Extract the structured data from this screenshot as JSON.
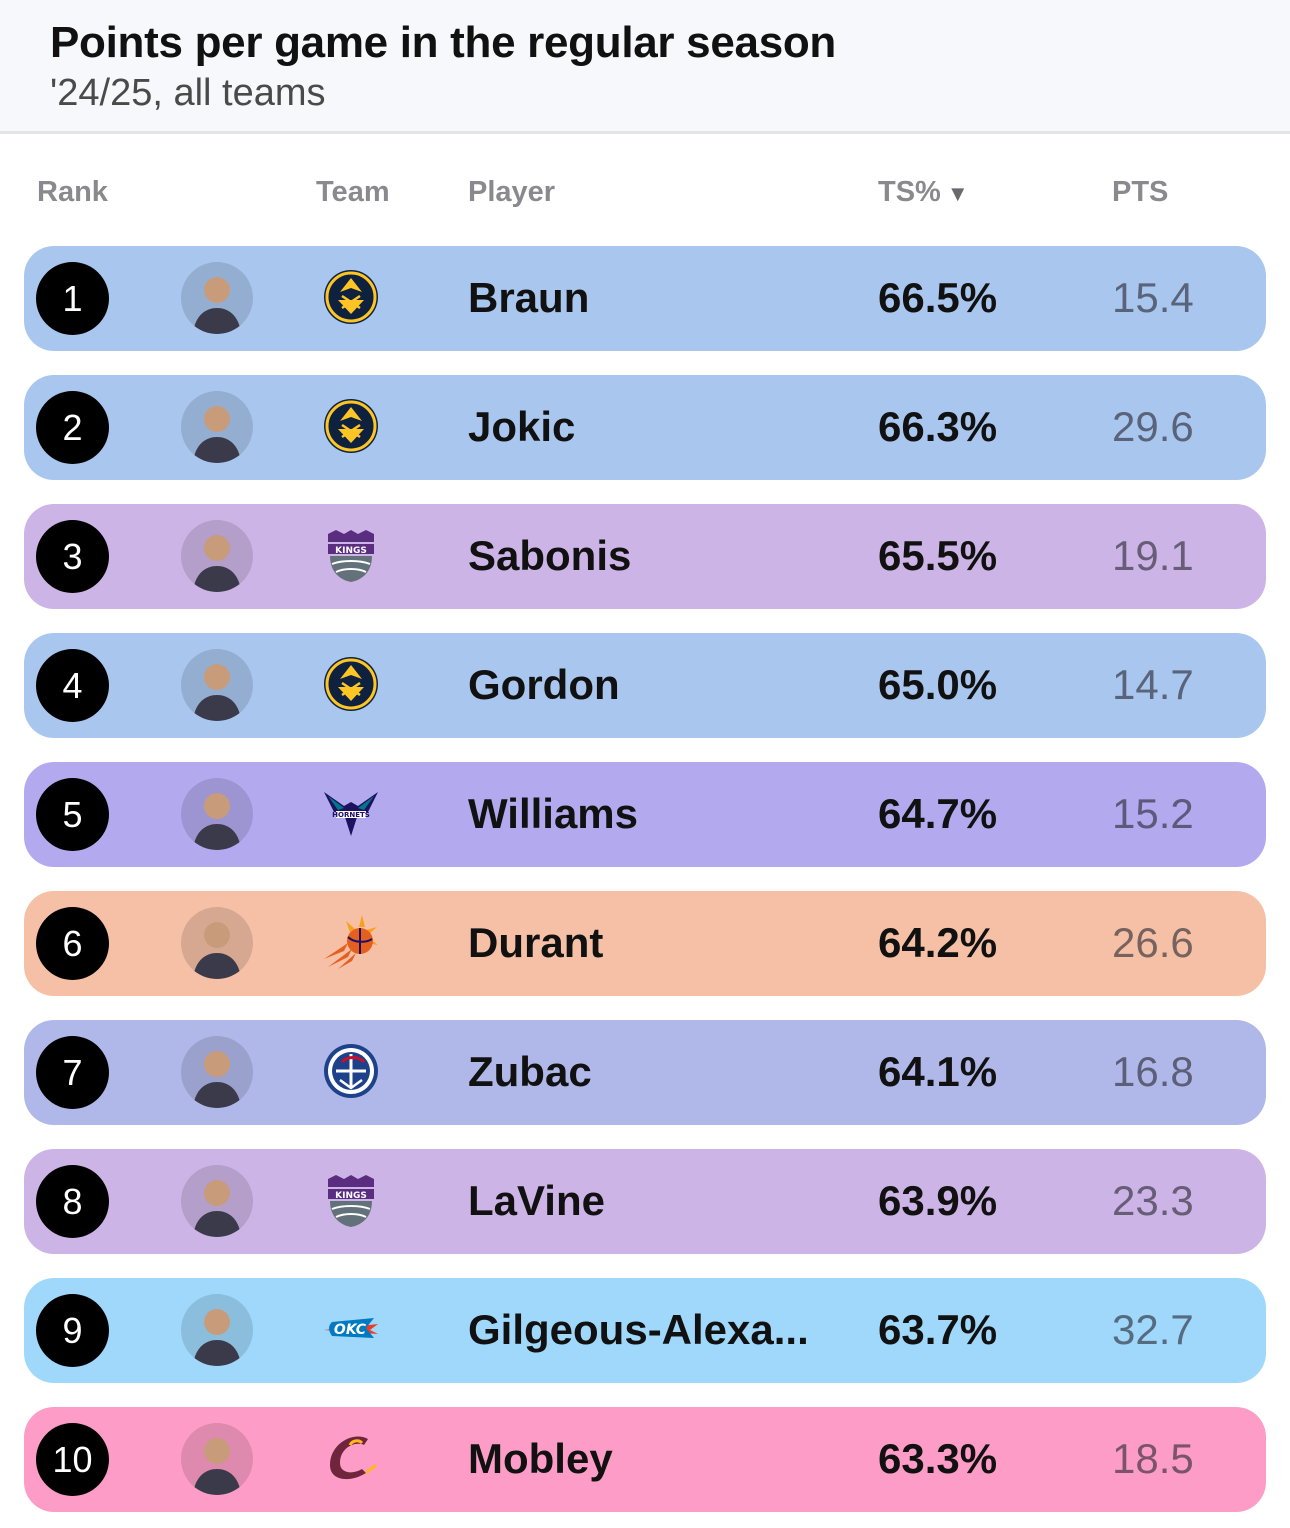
{
  "header": {
    "title": "Points per game in the regular season",
    "subtitle": "'24/25, all teams"
  },
  "columns": {
    "rank": "Rank",
    "team": "Team",
    "player": "Player",
    "ts": "TS%",
    "ts_sort_indicator": "▼",
    "pts": "PTS"
  },
  "rows": [
    {
      "rank": "1",
      "team_icon": "nuggets-logo-icon",
      "player": "Braun",
      "ts": "66.5%",
      "pts": "15.4",
      "color": "#a9c6ef"
    },
    {
      "rank": "2",
      "team_icon": "nuggets-logo-icon",
      "player": "Jokic",
      "ts": "66.3%",
      "pts": "29.6",
      "color": "#a9c6ef"
    },
    {
      "rank": "3",
      "team_icon": "kings-logo-icon",
      "player": "Sabonis",
      "ts": "65.5%",
      "pts": "19.1",
      "color": "#cdb4e6"
    },
    {
      "rank": "4",
      "team_icon": "nuggets-logo-icon",
      "player": "Gordon",
      "ts": "65.0%",
      "pts": "14.7",
      "color": "#a9c6ef"
    },
    {
      "rank": "5",
      "team_icon": "hornets-logo-icon",
      "player": "Williams",
      "ts": "64.7%",
      "pts": "15.2",
      "color": "#b3a9ef"
    },
    {
      "rank": "6",
      "team_icon": "suns-logo-icon",
      "player": "Durant",
      "ts": "64.2%",
      "pts": "26.6",
      "color": "#f5c0a6"
    },
    {
      "rank": "7",
      "team_icon": "clippers-logo-icon",
      "player": "Zubac",
      "ts": "64.1%",
      "pts": "16.8",
      "color": "#b0b8e9"
    },
    {
      "rank": "8",
      "team_icon": "kings-logo-icon",
      "player": "LaVine",
      "ts": "63.9%",
      "pts": "23.3",
      "color": "#cdb4e6"
    },
    {
      "rank": "9",
      "team_icon": "thunder-logo-icon",
      "player": "Gilgeous-Alexa...",
      "ts": "63.7%",
      "pts": "32.7",
      "color": "#9fd8fb"
    },
    {
      "rank": "10",
      "team_icon": "cavaliers-logo-icon",
      "player": "Mobley",
      "ts": "63.3%",
      "pts": "18.5",
      "color": "#fd9cc6"
    }
  ]
}
